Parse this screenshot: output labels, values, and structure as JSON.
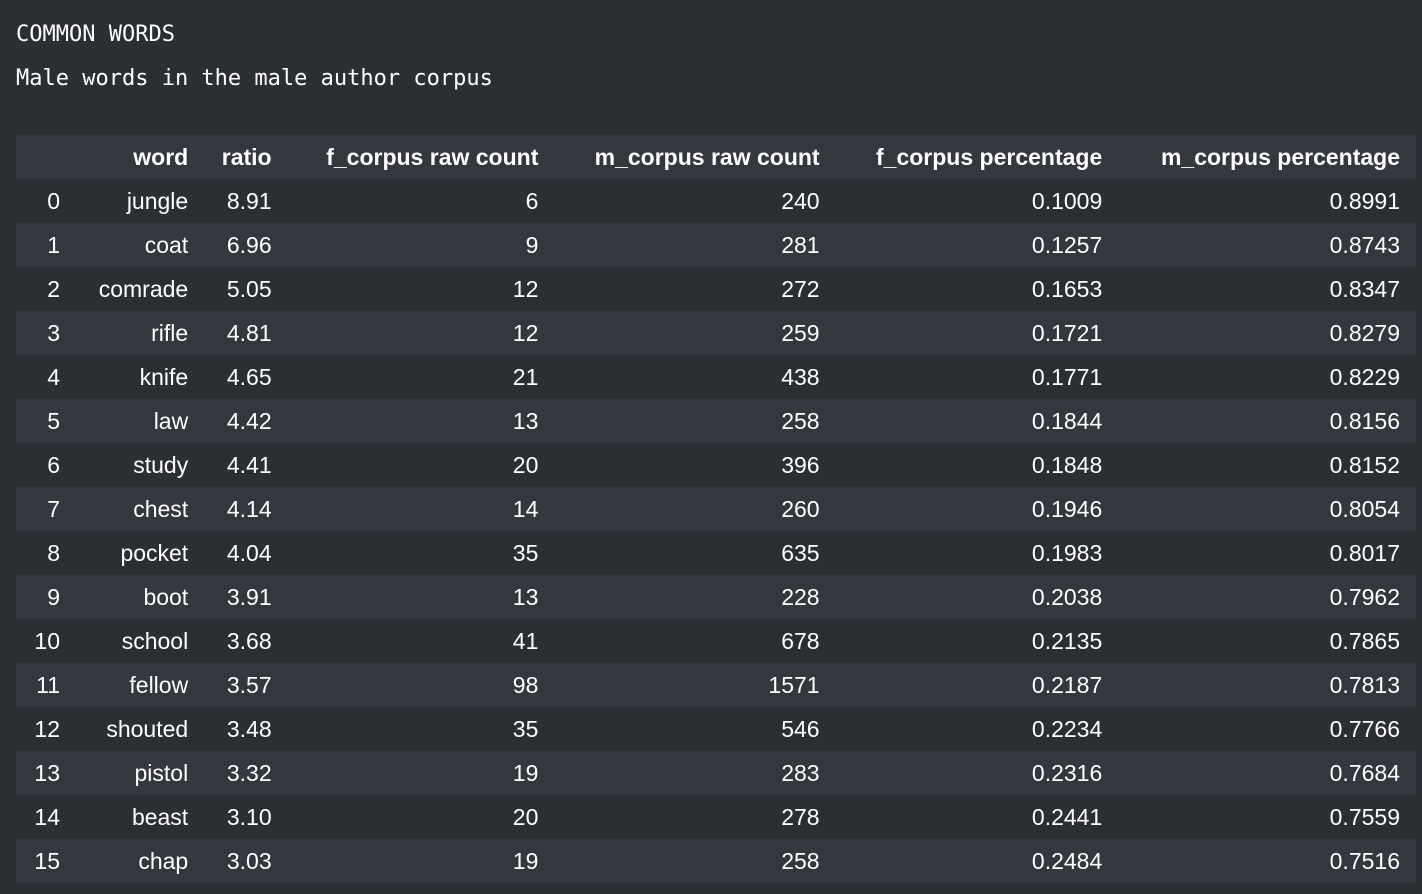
{
  "output": {
    "line1": "COMMON WORDS",
    "line2": "Male words in the male author corpus"
  },
  "table": {
    "columns": [
      "",
      "word",
      "ratio",
      "f_corpus raw count",
      "m_corpus raw count",
      "f_corpus percentage",
      "m_corpus percentage"
    ],
    "rows": [
      [
        "0",
        "jungle",
        "8.91",
        "6",
        "240",
        "0.1009",
        "0.8991"
      ],
      [
        "1",
        "coat",
        "6.96",
        "9",
        "281",
        "0.1257",
        "0.8743"
      ],
      [
        "2",
        "comrade",
        "5.05",
        "12",
        "272",
        "0.1653",
        "0.8347"
      ],
      [
        "3",
        "rifle",
        "4.81",
        "12",
        "259",
        "0.1721",
        "0.8279"
      ],
      [
        "4",
        "knife",
        "4.65",
        "21",
        "438",
        "0.1771",
        "0.8229"
      ],
      [
        "5",
        "law",
        "4.42",
        "13",
        "258",
        "0.1844",
        "0.8156"
      ],
      [
        "6",
        "study",
        "4.41",
        "20",
        "396",
        "0.1848",
        "0.8152"
      ],
      [
        "7",
        "chest",
        "4.14",
        "14",
        "260",
        "0.1946",
        "0.8054"
      ],
      [
        "8",
        "pocket",
        "4.04",
        "35",
        "635",
        "0.1983",
        "0.8017"
      ],
      [
        "9",
        "boot",
        "3.91",
        "13",
        "228",
        "0.2038",
        "0.7962"
      ],
      [
        "10",
        "school",
        "3.68",
        "41",
        "678",
        "0.2135",
        "0.7865"
      ],
      [
        "11",
        "fellow",
        "3.57",
        "98",
        "1571",
        "0.2187",
        "0.7813"
      ],
      [
        "12",
        "shouted",
        "3.48",
        "35",
        "546",
        "0.2234",
        "0.7766"
      ],
      [
        "13",
        "pistol",
        "3.32",
        "19",
        "283",
        "0.2316",
        "0.7684"
      ],
      [
        "14",
        "beast",
        "3.10",
        "20",
        "278",
        "0.2441",
        "0.7559"
      ],
      [
        "15",
        "chap",
        "3.03",
        "19",
        "258",
        "0.2484",
        "0.7516"
      ]
    ]
  },
  "colors": {
    "background": "#2b2e33",
    "row_alt": "#34373d",
    "text": "#ffffff"
  }
}
